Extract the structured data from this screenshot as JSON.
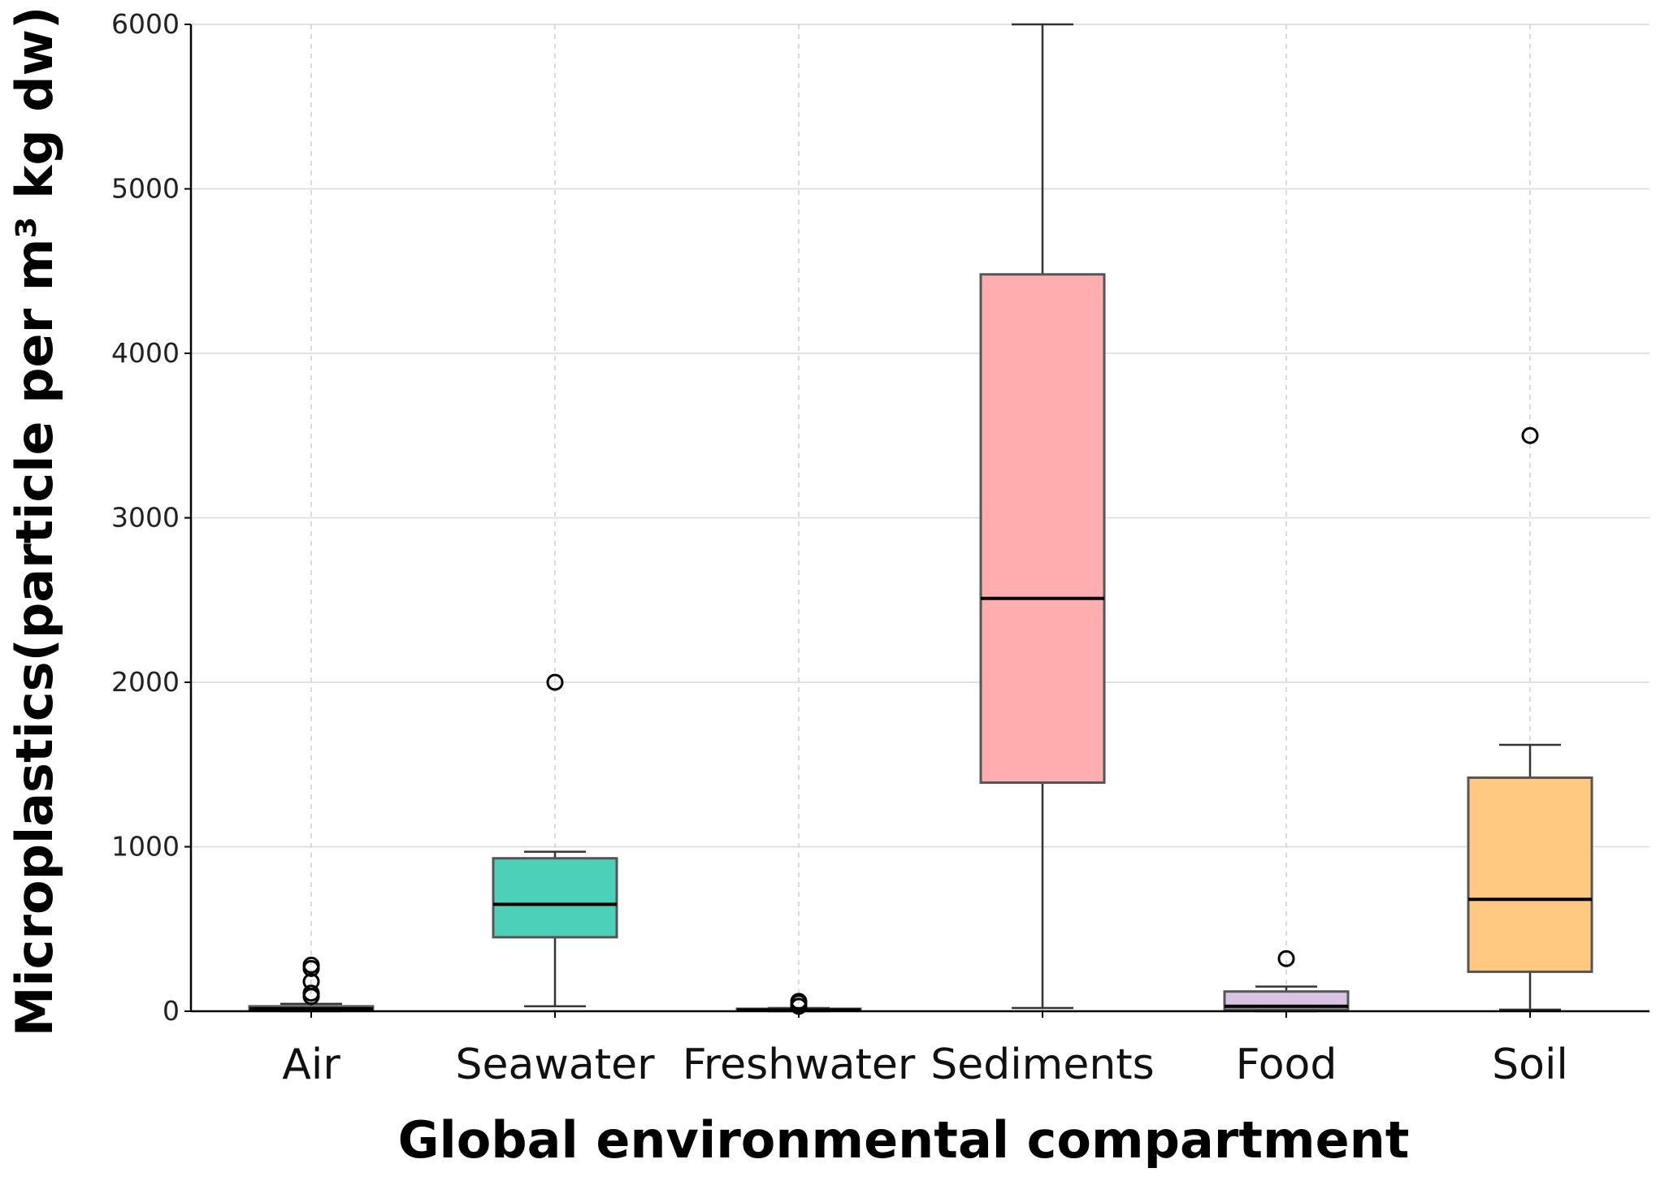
{
  "chart_data": {
    "type": "box",
    "xlabel": "Global environmental compartment",
    "ylabel": "Microplastics(particle per m³ kg dw)",
    "ylim": [
      0,
      6000
    ],
    "yticks": [
      0,
      1000,
      2000,
      3000,
      4000,
      5000,
      6000
    ],
    "grid": {
      "y": "solid light gray",
      "x": "dashed light gray"
    },
    "categories": [
      "Air",
      "Seawater",
      "Freshwater",
      "Sediments",
      "Food",
      "Soil"
    ],
    "boxes": [
      {
        "category": "Air",
        "color": "#7f7f7f",
        "whisker_low": 0,
        "q1": 5,
        "median": 15,
        "q3": 30,
        "whisker_high": 45,
        "outliers": [
          90,
          110,
          180,
          260,
          280
        ]
      },
      {
        "category": "Seawater",
        "color": "#4dd0b9",
        "whisker_low": 30,
        "q1": 450,
        "median": 650,
        "q3": 930,
        "whisker_high": 970,
        "outliers": [
          2000
        ]
      },
      {
        "category": "Freshwater",
        "color": "#7f7f7f",
        "whisker_low": 0,
        "q1": 3,
        "median": 8,
        "q3": 15,
        "whisker_high": 20,
        "outliers": [
          30,
          50,
          60
        ]
      },
      {
        "category": "Sediments",
        "color": "#ffaeb0",
        "whisker_low": 20,
        "q1": 1390,
        "median": 2510,
        "q3": 4480,
        "whisker_high": 6000,
        "outliers": []
      },
      {
        "category": "Food",
        "color": "#d9c3e3",
        "whisker_low": 0,
        "q1": 10,
        "median": 30,
        "q3": 120,
        "whisker_high": 150,
        "outliers": [
          320
        ]
      },
      {
        "category": "Soil",
        "color": "#ffc981",
        "whisker_low": 10,
        "q1": 240,
        "median": 680,
        "q3": 1420,
        "whisker_high": 1620,
        "outliers": [
          3500
        ]
      }
    ]
  }
}
